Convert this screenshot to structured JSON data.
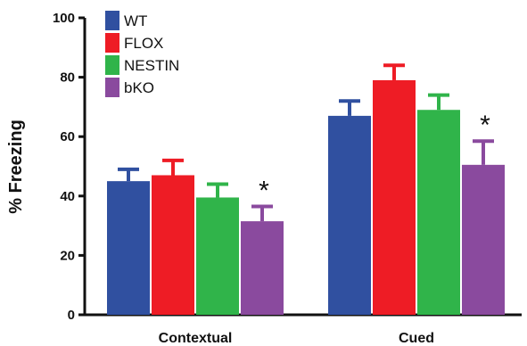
{
  "chart_data": {
    "type": "bar",
    "ylabel": "% Freezing",
    "ylim": [
      0,
      100
    ],
    "yticks": [
      0,
      20,
      40,
      60,
      80,
      100
    ],
    "categories": [
      "Contextual",
      "Cued"
    ],
    "legend_position": "top-left",
    "series": [
      {
        "name": "WT",
        "color": "#3050a0",
        "values": [
          45,
          67
        ],
        "errors": [
          4,
          5
        ]
      },
      {
        "name": "FLOX",
        "color": "#ee1c25",
        "values": [
          47,
          79
        ],
        "errors": [
          5,
          5
        ]
      },
      {
        "name": "NESTIN",
        "color": "#30b44a",
        "values": [
          39.5,
          69
        ],
        "errors": [
          4.5,
          5
        ]
      },
      {
        "name": "bKO",
        "color": "#8a4a9e",
        "values": [
          31.5,
          50.5
        ],
        "errors": [
          5,
          8
        ]
      }
    ],
    "annotations": [
      {
        "text": "*",
        "category": "Contextual",
        "series": "bKO"
      },
      {
        "text": "*",
        "category": "Cued",
        "series": "bKO"
      }
    ]
  }
}
